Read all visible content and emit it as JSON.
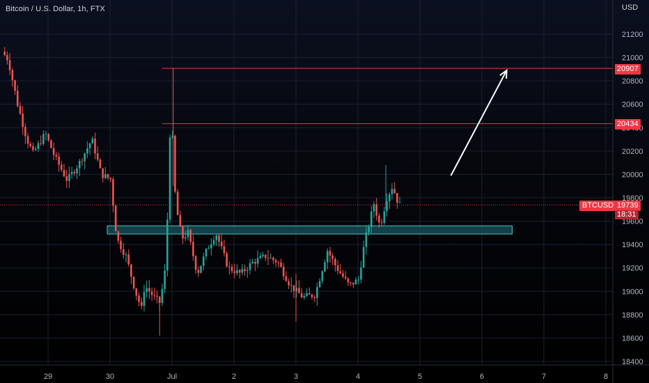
{
  "title": "Bitcoin / U.S. Dollar, 1h, FTX",
  "currency": "USD",
  "price_tags": {
    "level_high": "20907",
    "level_mid": "20434",
    "last_price": "19739",
    "ticker": "BTCUSD",
    "countdown": "18:31"
  },
  "colors": {
    "up": "#26a69a",
    "down": "#ef5350",
    "level_line": "#f23645",
    "zone_fill": "#154c55",
    "zone_border": "#4fc3c7",
    "arrow": "#ffffff",
    "grid": "#1c2030"
  },
  "chart_data": {
    "type": "candlestick",
    "title": "Bitcoin / U.S. Dollar, 1h, FTX",
    "y_axis": {
      "unit": "USD",
      "ticks": [
        18400,
        18600,
        18800,
        19000,
        19200,
        19400,
        19600,
        19800,
        20000,
        20200,
        20400,
        20600,
        20800,
        21000,
        21200
      ],
      "range": [
        18340,
        21400
      ]
    },
    "x_axis": {
      "tick_labels": [
        "29",
        "30",
        "Jul",
        "2",
        "3",
        "4",
        "5",
        "6",
        "7",
        "8"
      ],
      "range_days": [
        28.3,
        8.2
      ]
    },
    "horizontal_levels": [
      20907,
      20434
    ],
    "last_price": 19739,
    "support_zone": {
      "low": 19490,
      "high": 19560,
      "start_day": 30.0,
      "end_day": 6.5
    },
    "arrow": {
      "from": {
        "day": 5.5,
        "price": 19990
      },
      "to": {
        "day": 6.4,
        "price": 20890
      }
    },
    "anchors": [
      [
        28.3,
        21050
      ],
      [
        28.4,
        20980
      ],
      [
        28.55,
        20600
      ],
      [
        28.7,
        20300
      ],
      [
        28.8,
        20180
      ],
      [
        29.0,
        20350
      ],
      [
        29.15,
        20150
      ],
      [
        29.35,
        19950
      ],
      [
        29.55,
        20100
      ],
      [
        29.75,
        20300
      ],
      [
        29.9,
        20000
      ],
      [
        30.05,
        19960
      ],
      [
        30.15,
        19450
      ],
      [
        30.3,
        19300
      ],
      [
        30.45,
        19000
      ],
      [
        30.55,
        18850
      ],
      [
        30.6,
        19050
      ],
      [
        30.75,
        18950
      ],
      [
        30.85,
        18900
      ],
      [
        30.95,
        19250
      ],
      [
        31.0,
        20350
      ],
      [
        31.05,
        20300
      ],
      [
        31.1,
        19750
      ],
      [
        31.2,
        19450
      ],
      [
        31.3,
        19500
      ],
      [
        31.45,
        19150
      ],
      [
        31.6,
        19350
      ],
      [
        31.75,
        19500
      ],
      [
        31.95,
        19200
      ],
      [
        32.15,
        19150
      ],
      [
        32.35,
        19250
      ],
      [
        32.55,
        19300
      ],
      [
        32.75,
        19250
      ],
      [
        32.95,
        19050
      ],
      [
        33.15,
        18950
      ],
      [
        33.35,
        18970
      ],
      [
        33.55,
        19350
      ],
      [
        33.7,
        19200
      ],
      [
        33.9,
        19050
      ],
      [
        34.05,
        19100
      ],
      [
        34.15,
        19420
      ],
      [
        34.3,
        19750
      ],
      [
        34.4,
        19550
      ],
      [
        34.5,
        19790
      ],
      [
        34.6,
        19900
      ],
      [
        34.7,
        19740
      ]
    ]
  }
}
